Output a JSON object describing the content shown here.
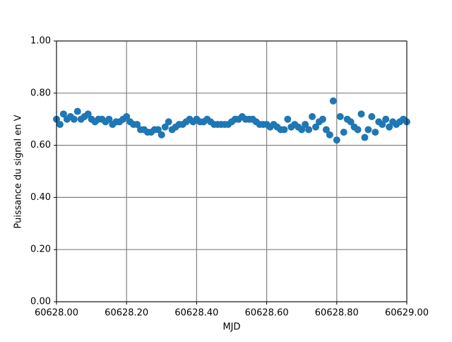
{
  "chart_data": {
    "type": "scatter",
    "x_label": "MJD",
    "y_label": "Puissance du signal en V",
    "color": "#1f77b4",
    "grid": true,
    "xlim": [
      60628.0,
      60629.0
    ],
    "xticks": [
      {
        "value": 60628.0,
        "label": "60628.00"
      },
      {
        "value": 60628.2,
        "label": "60628.20"
      },
      {
        "value": 60628.4,
        "label": "60628.40"
      },
      {
        "value": 60628.6,
        "label": "60628.60"
      },
      {
        "value": 60628.8,
        "label": "60628.80"
      },
      {
        "value": 60629.0,
        "label": "60629.00"
      }
    ],
    "ylim": [
      0,
      1
    ],
    "yticks": [
      {
        "value": 0,
        "label": "0.00"
      },
      {
        "value": 0.2,
        "label": "0.20"
      },
      {
        "value": 0.4,
        "label": "0.40"
      },
      {
        "value": 0.6,
        "label": "0.60"
      },
      {
        "value": 0.8,
        "label": "0.80"
      },
      {
        "value": 1,
        "label": "1.00"
      }
    ],
    "x": [
      60628.0,
      60628.01,
      60628.02,
      60628.03,
      60628.04,
      60628.05,
      60628.06,
      60628.07,
      60628.08,
      60628.09,
      60628.1,
      60628.11,
      60628.12,
      60628.13,
      60628.14,
      60628.15,
      60628.16,
      60628.17,
      60628.18,
      60628.19,
      60628.2,
      60628.21,
      60628.22,
      60628.23,
      60628.24,
      60628.25,
      60628.26,
      60628.27,
      60628.28,
      60628.29,
      60628.3,
      60628.31,
      60628.32,
      60628.33,
      60628.34,
      60628.35,
      60628.36,
      60628.37,
      60628.38,
      60628.39,
      60628.4,
      60628.41,
      60628.42,
      60628.43,
      60628.44,
      60628.45,
      60628.46,
      60628.47,
      60628.48,
      60628.49,
      60628.5,
      60628.51,
      60628.52,
      60628.53,
      60628.54,
      60628.55,
      60628.56,
      60628.57,
      60628.58,
      60628.59,
      60628.6,
      60628.61,
      60628.62,
      60628.63,
      60628.64,
      60628.65,
      60628.66,
      60628.67,
      60628.68,
      60628.69,
      60628.7,
      60628.71,
      60628.72,
      60628.73,
      60628.74,
      60628.75,
      60628.76,
      60628.77,
      60628.78,
      60628.79,
      60628.8,
      60628.81,
      60628.82,
      60628.83,
      60628.84,
      60628.85,
      60628.86,
      60628.87,
      60628.88,
      60628.89,
      60628.9,
      60628.91,
      60628.92,
      60628.93,
      60628.94,
      60628.95,
      60628.96,
      60628.97,
      60628.98,
      60628.99,
      60629.0
    ],
    "values": [
      0.7,
      0.68,
      0.72,
      0.7,
      0.71,
      0.7,
      0.73,
      0.7,
      0.71,
      0.72,
      0.7,
      0.69,
      0.7,
      0.7,
      0.69,
      0.7,
      0.68,
      0.69,
      0.69,
      0.7,
      0.71,
      0.69,
      0.68,
      0.68,
      0.66,
      0.66,
      0.65,
      0.65,
      0.66,
      0.66,
      0.64,
      0.67,
      0.69,
      0.66,
      0.67,
      0.68,
      0.68,
      0.69,
      0.7,
      0.69,
      0.7,
      0.69,
      0.69,
      0.7,
      0.69,
      0.68,
      0.68,
      0.68,
      0.68,
      0.68,
      0.69,
      0.7,
      0.7,
      0.71,
      0.7,
      0.7,
      0.7,
      0.69,
      0.68,
      0.68,
      0.68,
      0.67,
      0.68,
      0.67,
      0.66,
      0.66,
      0.7,
      0.67,
      0.68,
      0.67,
      0.66,
      0.68,
      0.66,
      0.71,
      0.67,
      0.69,
      0.7,
      0.66,
      0.64,
      0.77,
      0.62,
      0.71,
      0.65,
      0.7,
      0.69,
      0.67,
      0.66,
      0.72,
      0.63,
      0.66,
      0.71,
      0.65,
      0.69,
      0.68,
      0.7,
      0.67,
      0.69,
      0.68,
      0.69,
      0.7,
      0.69
    ]
  }
}
